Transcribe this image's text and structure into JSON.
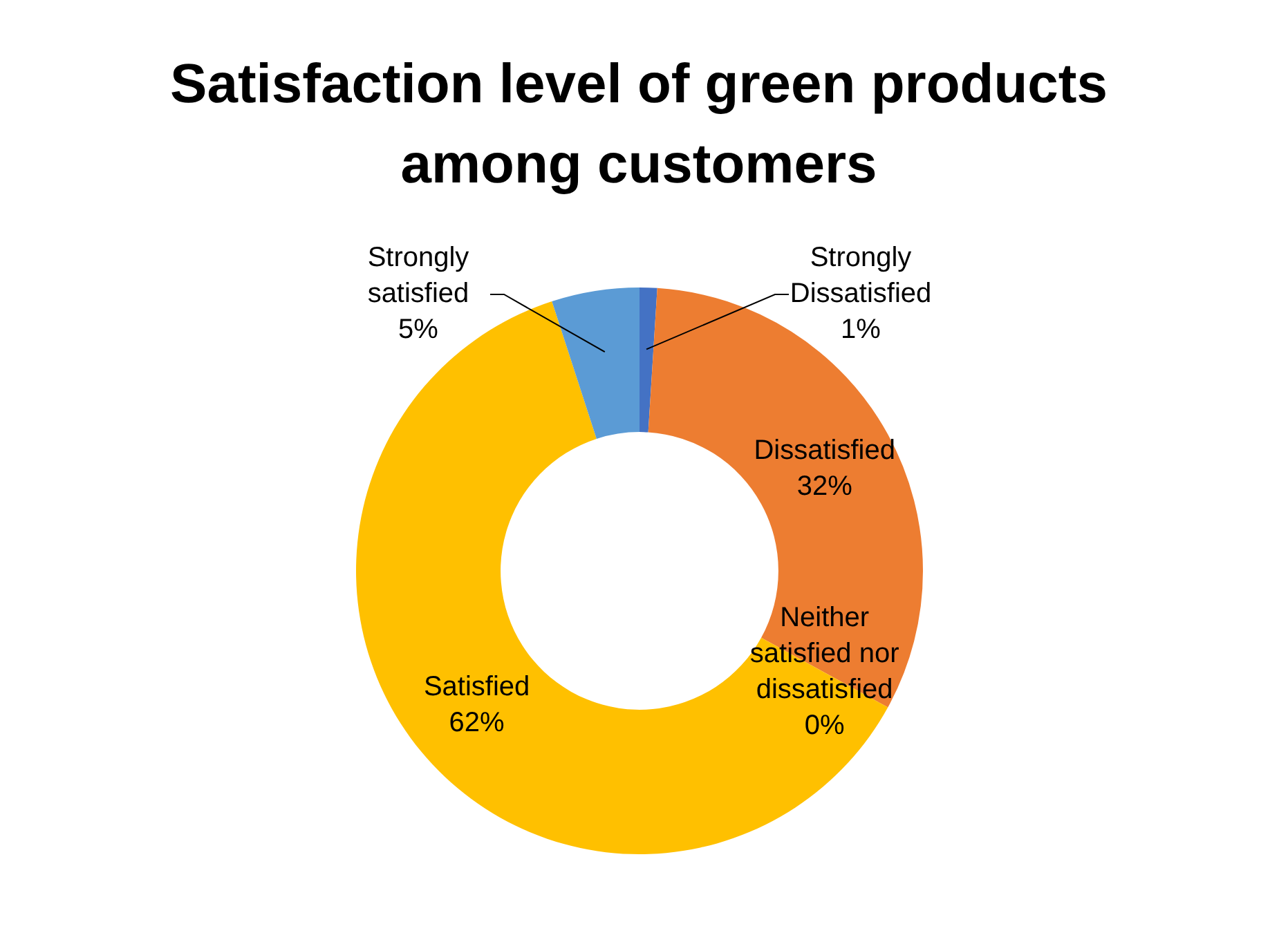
{
  "chart_data": {
    "type": "donut",
    "title": "Satisfaction level of green products among customers",
    "categories": [
      "Strongly Dissatisfied",
      "Dissatisfied",
      "Neither satisfied nor dissatisfied",
      "Satisfied",
      "Strongly satisfied"
    ],
    "values": [
      1,
      32,
      0,
      62,
      5
    ],
    "value_labels": [
      "1%",
      "32%",
      "0%",
      "62%",
      "5%"
    ],
    "colors": [
      "#4472c4",
      "#ed7d31",
      "#a5a5a5",
      "#ffc000",
      "#5b9bd5"
    ],
    "legend": false
  }
}
